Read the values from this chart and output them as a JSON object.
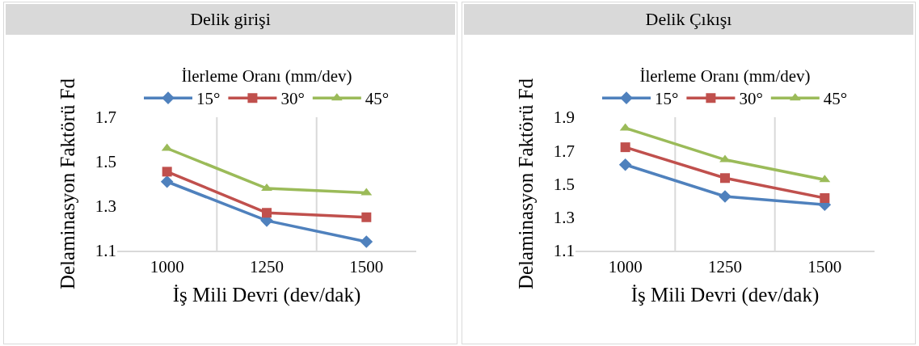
{
  "chart_data": [
    {
      "type": "line",
      "title": "Delik girişi",
      "xlabel": "İş Mili Devri (dev/dak)",
      "ylabel": "Delaminasyon Faktörü Fd",
      "legend_title": "İlerleme Oranı (mm/dev)",
      "categories": [
        "1000",
        "1250",
        "1500"
      ],
      "ylim": [
        1.1,
        1.7
      ],
      "yticks": [
        1.1,
        1.3,
        1.5,
        1.7
      ],
      "grid": "x",
      "legend": "top",
      "series": [
        {
          "name": "15°",
          "color": "#4f81bd",
          "marker": "diamond",
          "values": [
            1.41,
            1.235,
            1.14
          ]
        },
        {
          "name": "30°",
          "color": "#c0504d",
          "marker": "square",
          "values": [
            1.455,
            1.27,
            1.25
          ]
        },
        {
          "name": "45°",
          "color": "#9bbb59",
          "marker": "triangle",
          "values": [
            1.56,
            1.38,
            1.36
          ]
        }
      ]
    },
    {
      "type": "line",
      "title": "Delik Çıkışı",
      "xlabel": "İş Mili Devri (dev/dak)",
      "ylabel": "Delaminasyon Faktörü Fd",
      "legend_title": "İlerleme Oranı (mm/dev)",
      "categories": [
        "1000",
        "1250",
        "1500"
      ],
      "ylim": [
        1.1,
        1.9
      ],
      "yticks": [
        1.1,
        1.3,
        1.5,
        1.7,
        1.9
      ],
      "grid": "x",
      "legend": "top",
      "series": [
        {
          "name": "15°",
          "color": "#4f81bd",
          "marker": "diamond",
          "values": [
            1.615,
            1.425,
            1.375
          ]
        },
        {
          "name": "30°",
          "color": "#c0504d",
          "marker": "square",
          "values": [
            1.72,
            1.535,
            1.415
          ]
        },
        {
          "name": "45°",
          "color": "#9bbb59",
          "marker": "triangle",
          "values": [
            1.835,
            1.645,
            1.525
          ]
        }
      ]
    }
  ]
}
